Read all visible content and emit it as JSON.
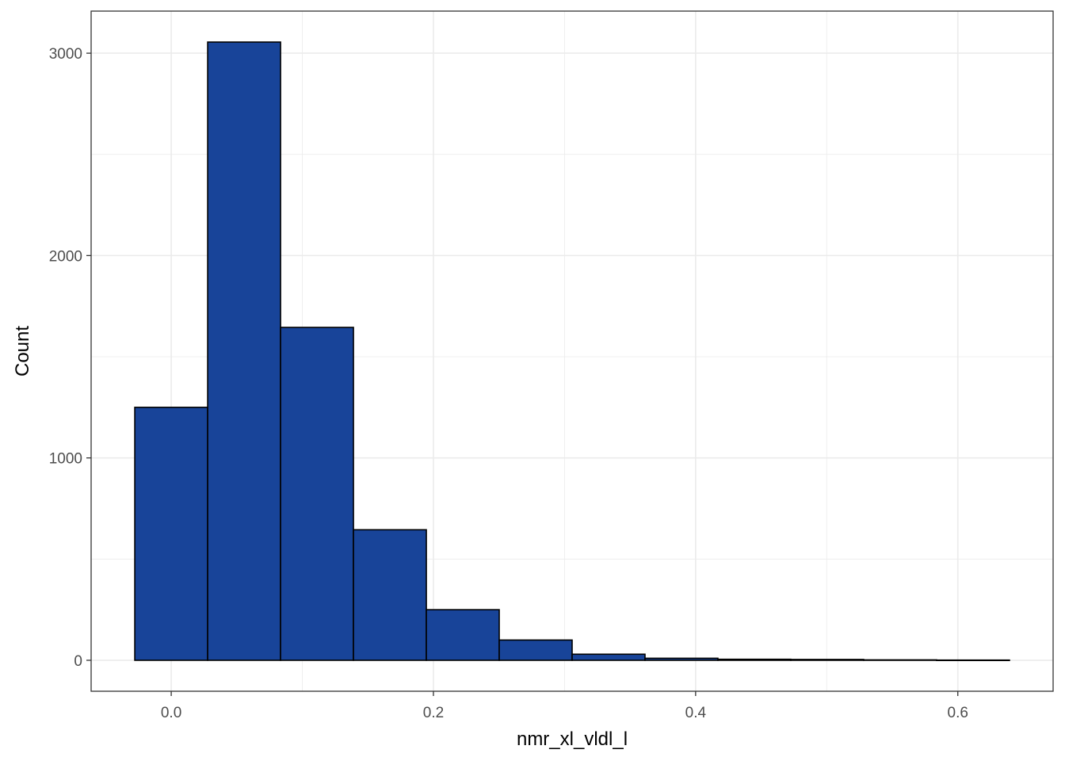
{
  "chart_data": {
    "type": "bar",
    "subtype": "histogram",
    "xlabel": "nmr_xl_vldl_l",
    "ylabel": "Count",
    "bin_width": 0.0556,
    "bins": [
      {
        "x0": -0.0278,
        "x1": 0.0278,
        "count": 1250
      },
      {
        "x0": 0.0278,
        "x1": 0.0834,
        "count": 3055
      },
      {
        "x0": 0.0834,
        "x1": 0.139,
        "count": 1645
      },
      {
        "x0": 0.139,
        "x1": 0.1946,
        "count": 645
      },
      {
        "x0": 0.1946,
        "x1": 0.2502,
        "count": 250
      },
      {
        "x0": 0.2502,
        "x1": 0.3058,
        "count": 100
      },
      {
        "x0": 0.3058,
        "x1": 0.3614,
        "count": 30
      },
      {
        "x0": 0.3614,
        "x1": 0.417,
        "count": 10
      },
      {
        "x0": 0.417,
        "x1": 0.4726,
        "count": 5
      },
      {
        "x0": 0.4726,
        "x1": 0.5282,
        "count": 4
      },
      {
        "x0": 0.5282,
        "x1": 0.5838,
        "count": 2
      },
      {
        "x0": 0.5838,
        "x1": 0.6394,
        "count": 1
      }
    ],
    "x_ticks": [
      0.0,
      0.2,
      0.4,
      0.6
    ],
    "x_tick_labels": [
      "0.0",
      "0.2",
      "0.4",
      "0.6"
    ],
    "y_ticks": [
      0,
      1000,
      2000,
      3000
    ],
    "y_tick_labels": [
      "0",
      "1000",
      "2000",
      "3000"
    ],
    "xlim": [
      -0.0611,
      0.6727
    ],
    "ylim": [
      -153,
      3208
    ],
    "grid": true,
    "legend": "none",
    "colors": {
      "bar_fill": "#184499",
      "bar_stroke": "#000000",
      "grid": "#ebebeb",
      "panel_border": "#333333"
    }
  }
}
